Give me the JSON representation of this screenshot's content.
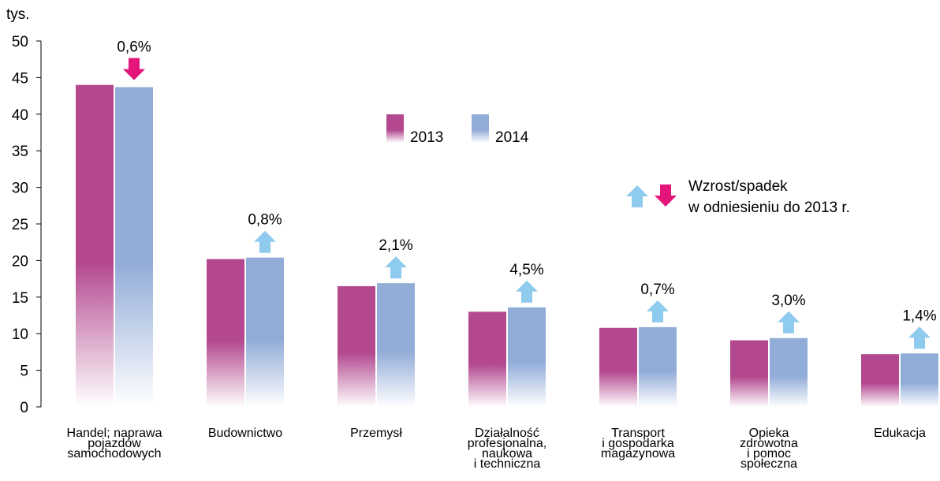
{
  "chart_data": {
    "type": "bar",
    "y_unit": "tys.",
    "categories": [
      [
        "Handel; naprawa",
        "pojazdów",
        "samochodowych"
      ],
      [
        "Budownictwo"
      ],
      [
        "Przemysł"
      ],
      [
        "Działalność",
        "profesjonalna,",
        "naukowa",
        "i techniczna"
      ],
      [
        "Transport",
        "i gospodarka",
        "magazynowa"
      ],
      [
        "Opieka",
        "zdrowotna",
        "i pomoc",
        "społeczna"
      ],
      [
        "Edukacja"
      ]
    ],
    "series": [
      {
        "name": "2013",
        "color": "#b3488f",
        "values": [
          44.0,
          20.2,
          16.5,
          13.0,
          10.8,
          9.1,
          7.2
        ]
      },
      {
        "name": "2014",
        "color": "#92acd8",
        "values": [
          43.7,
          20.4,
          16.9,
          13.6,
          10.9,
          9.4,
          7.3
        ]
      }
    ],
    "changes": [
      {
        "label": "0,6%",
        "direction": "down"
      },
      {
        "label": "0,8%",
        "direction": "up"
      },
      {
        "label": "2,1%",
        "direction": "up"
      },
      {
        "label": "4,5%",
        "direction": "up"
      },
      {
        "label": "0,7%",
        "direction": "up"
      },
      {
        "label": "3,0%",
        "direction": "up"
      },
      {
        "label": "1,4%",
        "direction": "up"
      }
    ],
    "arrow_colors": {
      "up": "#8fcbef",
      "down": "#e3157a"
    },
    "note": [
      "Wzrost/spadek",
      "w odniesieniu do 2013 r."
    ],
    "ylim": [
      0,
      50
    ],
    "yticks": [
      0,
      5,
      10,
      15,
      20,
      25,
      30,
      35,
      40,
      45,
      50
    ]
  }
}
